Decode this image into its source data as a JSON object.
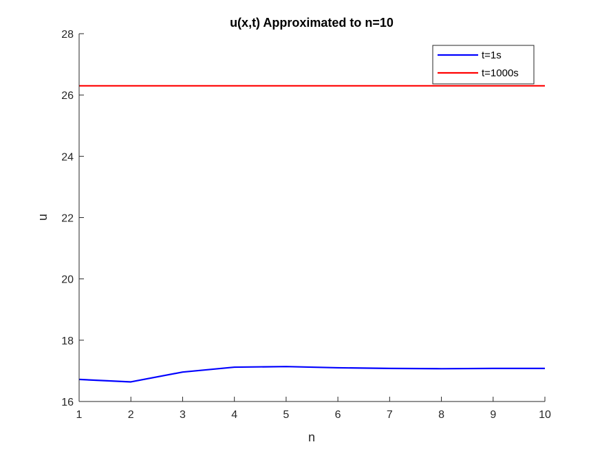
{
  "chart_data": {
    "type": "line",
    "title": "u(x,t) Approximated to n=10",
    "xlabel": "n",
    "ylabel": "u",
    "xlim": [
      1,
      10
    ],
    "ylim": [
      16,
      28
    ],
    "xticks": [
      1,
      2,
      3,
      4,
      5,
      6,
      7,
      8,
      9,
      10
    ],
    "yticks": [
      16,
      18,
      20,
      22,
      24,
      26,
      28
    ],
    "x": [
      1,
      2,
      3,
      4,
      5,
      6,
      7,
      8,
      9,
      10
    ],
    "series": [
      {
        "name": "t=1s",
        "color": "#0000ff",
        "values": [
          16.72,
          16.64,
          16.96,
          17.12,
          17.14,
          17.1,
          17.08,
          17.07,
          17.08,
          17.08
        ]
      },
      {
        "name": "t=1000s",
        "color": "#ff0000",
        "values": [
          26.3,
          26.3,
          26.3,
          26.3,
          26.3,
          26.3,
          26.3,
          26.3,
          26.3,
          26.3
        ]
      }
    ],
    "grid": false,
    "legend_position": "top-right"
  }
}
